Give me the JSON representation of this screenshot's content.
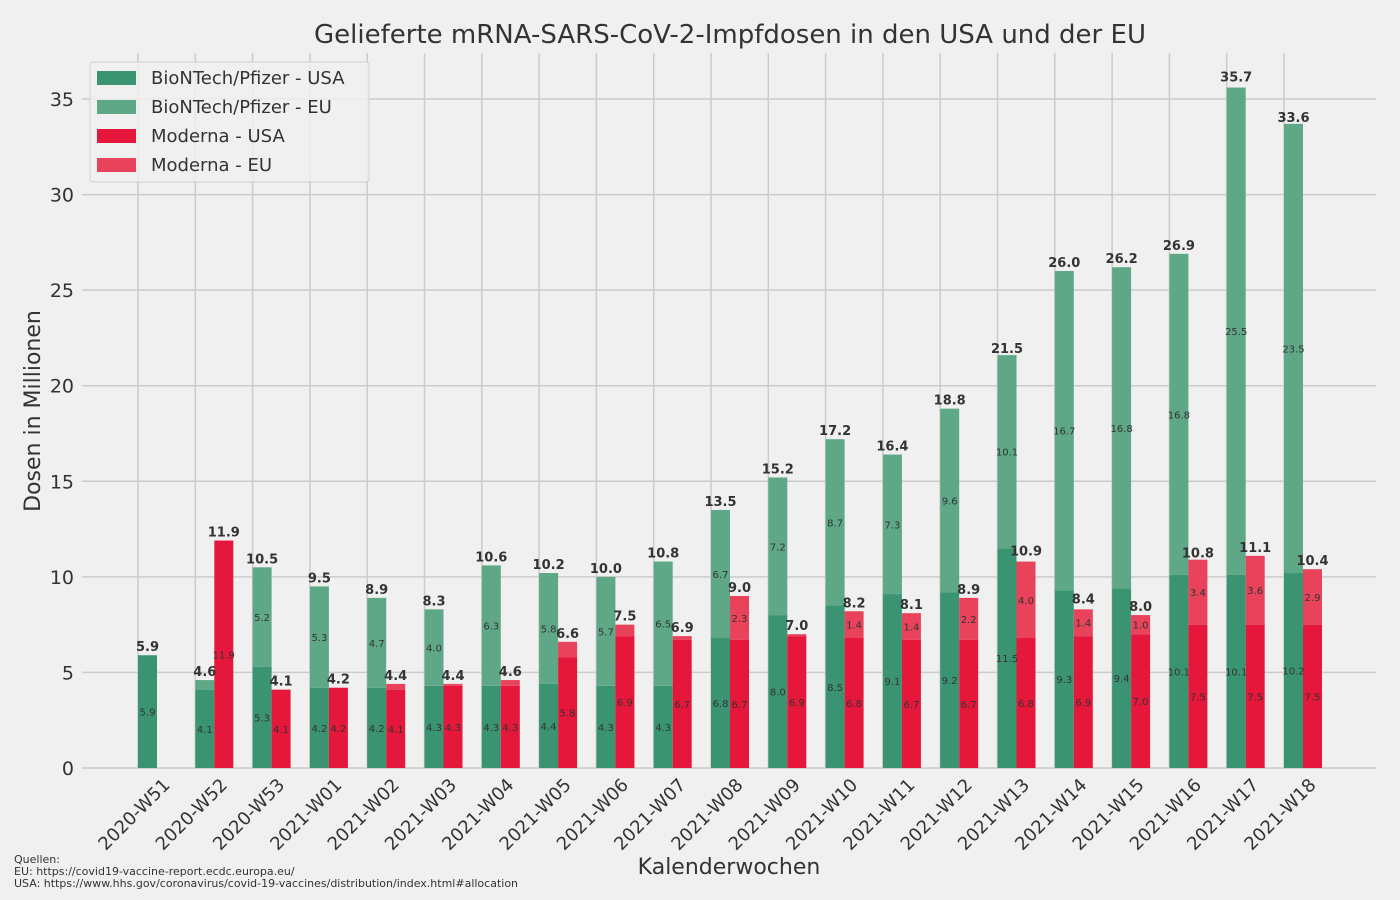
{
  "chart_data": {
    "type": "bar",
    "stacked": true,
    "title": "Gelieferte mRNA-SARS-CoV-2-Impfdosen in den USA und der EU",
    "xlabel": "Kalenderwochen",
    "ylabel": "Dosen in Millionen",
    "ylim": [
      0,
      37.4
    ],
    "yticks": [
      0,
      5,
      10,
      15,
      20,
      25,
      30,
      35
    ],
    "grid": true,
    "legend_position": "top-left",
    "categories": [
      "2020-W51",
      "2020-W52",
      "2020-W53",
      "2021-W01",
      "2021-W02",
      "2021-W03",
      "2021-W04",
      "2021-W05",
      "2021-W06",
      "2021-W07",
      "2021-W08",
      "2021-W09",
      "2021-W10",
      "2021-W11",
      "2021-W12",
      "2021-W13",
      "2021-W14",
      "2021-W15",
      "2021-W16",
      "2021-W17",
      "2021-W18"
    ],
    "series": [
      {
        "name": "BioNTech/Pfizer - USA",
        "stack": "pfizer",
        "color": "#3b9471",
        "values": [
          5.9,
          4.1,
          5.3,
          4.2,
          4.2,
          4.3,
          4.3,
          4.4,
          4.3,
          4.3,
          6.8,
          8.0,
          8.5,
          9.1,
          9.2,
          11.5,
          9.3,
          9.4,
          10.1,
          10.1,
          10.2
        ]
      },
      {
        "name": "BioNTech/Pfizer - EU",
        "stack": "pfizer",
        "color": "#5ea888",
        "values": [
          0.0,
          0.5,
          5.2,
          5.3,
          4.7,
          4.0,
          6.3,
          5.8,
          5.7,
          6.5,
          6.7,
          7.2,
          8.7,
          7.3,
          9.6,
          10.1,
          16.7,
          16.8,
          16.8,
          25.5,
          23.5
        ]
      },
      {
        "name": "Moderna - USA",
        "stack": "moderna",
        "color": "#e5173a",
        "values": [
          null,
          11.9,
          4.1,
          4.2,
          4.1,
          4.3,
          4.3,
          5.8,
          6.9,
          6.7,
          6.7,
          6.9,
          6.8,
          6.7,
          6.7,
          6.8,
          6.9,
          7.0,
          7.5,
          7.5,
          7.5
        ]
      },
      {
        "name": "Moderna - EU",
        "stack": "moderna",
        "color": "#e8435a",
        "values": [
          null,
          0.0,
          0.0,
          0.0,
          0.3,
          0.1,
          0.3,
          0.8,
          0.6,
          0.2,
          2.3,
          0.1,
          1.4,
          1.4,
          2.2,
          4.0,
          1.4,
          1.0,
          3.4,
          3.6,
          2.9
        ]
      }
    ],
    "totals": {
      "pfizer": [
        "5.9",
        "4.6",
        "10.5",
        "9.5",
        "8.9",
        "8.3",
        "10.6",
        "10.2",
        "10.0",
        "10.8",
        "13.5",
        "15.2",
        "17.2",
        "16.4",
        "18.8",
        "21.5",
        "26.0",
        "26.2",
        "26.9",
        "35.7",
        "33.6"
      ],
      "moderna": [
        null,
        "11.9",
        "4.1",
        "4.2",
        "4.4",
        "4.4",
        "4.6",
        "6.6",
        "7.5",
        "6.9",
        "9.0",
        "7.0",
        "8.2",
        "8.1",
        "8.9",
        "10.9",
        "8.4",
        "8.0",
        "10.8",
        "11.1",
        "10.4"
      ]
    }
  },
  "sources": {
    "heading": "Quellen:",
    "eu": "EU: https://covid19-vaccine-report.ecdc.europa.eu/",
    "usa": "USA: https://www.hhs.gov/coronavirus/covid-19-vaccines/distribution/index.html#allocation"
  }
}
